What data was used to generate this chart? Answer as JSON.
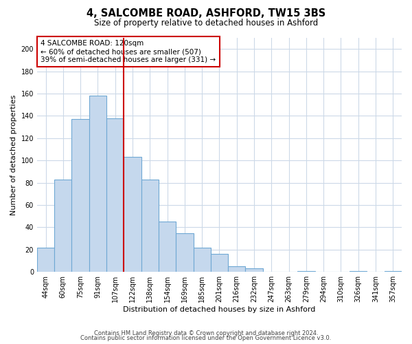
{
  "title": "4, SALCOMBE ROAD, ASHFORD, TW15 3BS",
  "subtitle": "Size of property relative to detached houses in Ashford",
  "xlabel": "Distribution of detached houses by size in Ashford",
  "ylabel": "Number of detached properties",
  "bar_labels": [
    "44sqm",
    "60sqm",
    "75sqm",
    "91sqm",
    "107sqm",
    "122sqm",
    "138sqm",
    "154sqm",
    "169sqm",
    "185sqm",
    "201sqm",
    "216sqm",
    "232sqm",
    "247sqm",
    "263sqm",
    "279sqm",
    "294sqm",
    "310sqm",
    "326sqm",
    "341sqm",
    "357sqm"
  ],
  "bar_values": [
    22,
    83,
    137,
    158,
    138,
    103,
    83,
    45,
    35,
    22,
    16,
    5,
    3,
    0,
    0,
    1,
    0,
    0,
    1,
    0,
    1
  ],
  "bar_color": "#c5d8ed",
  "bar_edge_color": "#6fa8d4",
  "vline_color": "#cc0000",
  "annotation_text": "4 SALCOMBE ROAD: 120sqm\n← 60% of detached houses are smaller (507)\n39% of semi-detached houses are larger (331) →",
  "annotation_box_color": "#ffffff",
  "annotation_box_edge": "#cc0000",
  "ylim": [
    0,
    210
  ],
  "yticks": [
    0,
    20,
    40,
    60,
    80,
    100,
    120,
    140,
    160,
    180,
    200
  ],
  "footer_line1": "Contains HM Land Registry data © Crown copyright and database right 2024.",
  "footer_line2": "Contains public sector information licensed under the Open Government Licence v3.0.",
  "background_color": "#ffffff",
  "grid_color": "#ccd9e8"
}
